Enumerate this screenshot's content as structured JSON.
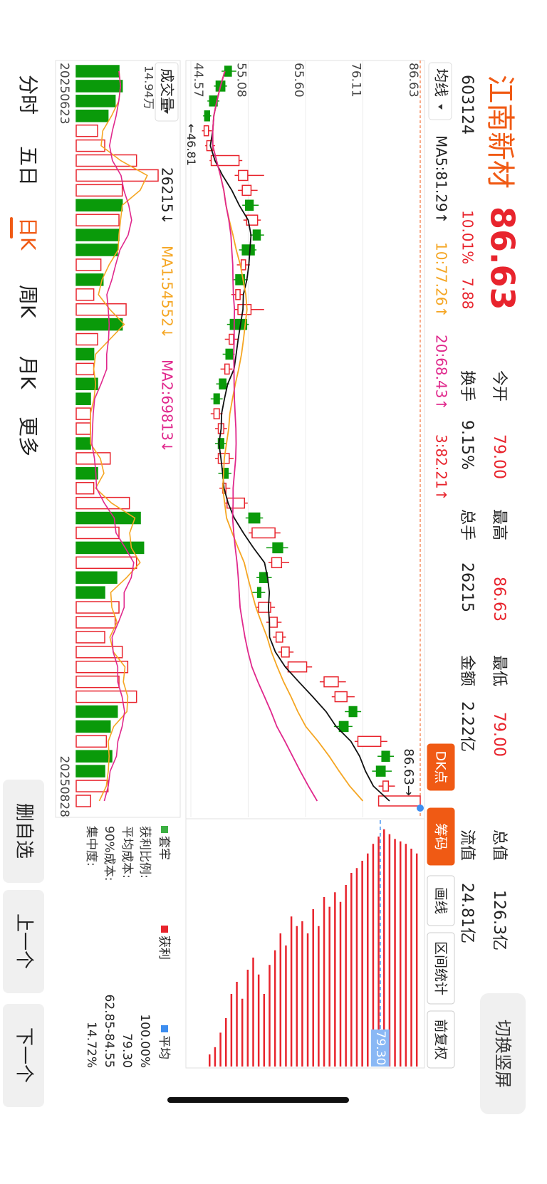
{
  "header": {
    "name": "江南新材",
    "price": "86.63",
    "code": "603124",
    "change_pct": "10.01%",
    "change": "7.88",
    "switch": "切换竖屏"
  },
  "stats": [
    {
      "label": "今开",
      "value": "79.00"
    },
    {
      "label": "换手",
      "value": "9.15%"
    },
    {
      "label": "最高",
      "value": "86.63"
    },
    {
      "label": "总手",
      "value": "26215"
    },
    {
      "label": "最低",
      "value": "79.00"
    },
    {
      "label": "金额",
      "value": "2.22亿"
    },
    {
      "label": "总值",
      "value": "126.3亿"
    },
    {
      "label": "流值",
      "value": "24.81亿"
    }
  ],
  "toolbar": {
    "ma_select": "均线",
    "ma": [
      "MA5:81.29↑",
      "10:77.26↑",
      "20:68.43↑",
      "3:82.21↑"
    ],
    "tabs": [
      "DK点",
      "筹码",
      "画线",
      "区间统计",
      "前复权"
    ]
  },
  "chart_data": {
    "type": "candlestick",
    "ylim": [
      44.57,
      86.63
    ],
    "yticks": [
      86.63,
      76.11,
      {
        "value": 65.6,
        "label": "65.60"
      },
      55.08,
      44.57
    ],
    "open": [
      52.0,
      50.8,
      49.4,
      48.0,
      47.0,
      47.5,
      48.3,
      53.3,
      54.0,
      56.0,
      54.8,
      57.3,
      56.2,
      53.8,
      54.4,
      52.8,
      53.2,
      54.8,
      51.6,
      52.2,
      50.8,
      51.0,
      49.8,
      48.8,
      49.6,
      50.6,
      49.6,
      51.4,
      50.4,
      51.2,
      57.2,
      55.8,
      61.4,
      59.4,
      58.6,
      57.4,
      57.0,
      59.0,
      60.2,
      61.2,
      62.4,
      69.0,
      71.0,
      75.0,
      73.4,
      75.2,
      81.0,
      80.2,
      79.8,
      79.0
    ],
    "high": [
      52.9,
      51.2,
      49.8,
      48.3,
      48.4,
      49.0,
      54.0,
      58.0,
      56.8,
      57.0,
      57.4,
      58.0,
      56.6,
      55.4,
      55.0,
      54.2,
      58.0,
      55.2,
      53.2,
      52.6,
      52.2,
      51.6,
      50.4,
      50.4,
      51.2,
      51.2,
      52.4,
      52.0,
      51.8,
      55.0,
      57.8,
      61.0,
      62.4,
      62.6,
      59.4,
      58.2,
      60.0,
      61.2,
      62.0,
      63.4,
      66.8,
      73.0,
      74.6,
      75.8,
      74.2,
      80.6,
      81.8,
      81.4,
      82.0,
      86.63
    ],
    "low": [
      50.2,
      48.8,
      47.6,
      46.81,
      46.6,
      47.2,
      48.0,
      52.6,
      53.2,
      54.0,
      54.2,
      55.4,
      53.4,
      53.0,
      52.2,
      52.0,
      52.6,
      51.2,
      50.8,
      50.4,
      50.0,
      49.2,
      48.2,
      48.2,
      49.0,
      49.0,
      49.0,
      49.6,
      49.8,
      50.8,
      54.6,
      55.2,
      58.4,
      58.8,
      56.6,
      55.8,
      56.4,
      58.4,
      59.6,
      60.6,
      62.0,
      68.2,
      70.4,
      72.8,
      70.8,
      74.6,
      78.8,
      77.8,
      79.0,
      79.0
    ],
    "close": [
      50.8,
      49.2,
      48.0,
      47.1,
      47.8,
      48.6,
      53.4,
      55.0,
      55.6,
      54.6,
      56.8,
      56.0,
      54.0,
      54.6,
      52.8,
      53.6,
      55.6,
      51.8,
      52.4,
      51.0,
      51.6,
      49.8,
      48.8,
      49.8,
      50.6,
      49.6,
      51.6,
      50.4,
      51.0,
      54.4,
      55.2,
      60.0,
      59.6,
      61.2,
      57.2,
      56.8,
      59.2,
      60.4,
      61.4,
      62.6,
      65.8,
      71.6,
      73.2,
      73.6,
      71.8,
      79.4,
      79.6,
      78.6,
      80.8,
      86.63
    ],
    "up_color": "#e8242d",
    "down_color": "#0a9a0a",
    "low_label": "←46.81",
    "last_label": "86.63→",
    "volume": {
      "title": "成交量",
      "top_label": "14.94万",
      "ylim": [
        0,
        149400
      ],
      "indicators": [
        "26215↓",
        "MA1:54552↓",
        "MA2:69813↓"
      ],
      "values": [
        78000,
        84000,
        71000,
        58000,
        39000,
        52000,
        110000,
        149400,
        84000,
        84000,
        78000,
        78000,
        75000,
        45000,
        49000,
        32000,
        91000,
        84000,
        39000,
        32000,
        32000,
        39000,
        26000,
        26000,
        26000,
        26000,
        62000,
        39000,
        32000,
        97000,
        117000,
        78000,
        123000,
        110000,
        74000,
        52000,
        78000,
        71000,
        52000,
        84000,
        94000,
        78000,
        110000,
        75000,
        62000,
        55000,
        65000,
        52000,
        58000,
        26215
      ]
    },
    "dates": [
      "20250623",
      "20250828"
    ]
  },
  "chips": {
    "legend": [
      "套牢",
      "获利",
      "平均"
    ],
    "avg_label": "79.30",
    "avg": 79.3,
    "levels": [
      48,
      49,
      50,
      51,
      52,
      53,
      54,
      55,
      56,
      57,
      58,
      59,
      60,
      61,
      62,
      63,
      64,
      65,
      66,
      67,
      68,
      69,
      70,
      71,
      72,
      73,
      74,
      75,
      76,
      77,
      78,
      79,
      80,
      81,
      82,
      83,
      84,
      85,
      86
    ],
    "amounts": [
      5,
      8,
      14,
      20,
      30,
      35,
      28,
      40,
      45,
      38,
      30,
      42,
      48,
      55,
      50,
      62,
      58,
      60,
      55,
      65,
      58,
      70,
      66,
      72,
      68,
      75,
      80,
      82,
      85,
      88,
      92,
      95,
      98,
      96,
      94,
      93,
      92,
      90,
      88
    ],
    "rows": [
      {
        "label": "获利比例:",
        "value": "100.00%"
      },
      {
        "label": "平均成本:",
        "value": "79.30"
      },
      {
        "label": "90%成本:",
        "value": "62.85-84.55"
      },
      {
        "label": "集中度:",
        "value": "14.72%"
      }
    ]
  },
  "period_tabs": [
    "分时",
    "五日",
    "日K",
    "周K",
    "月K",
    "更多"
  ],
  "buttons": [
    "删自选",
    "上一个",
    "下一个"
  ]
}
